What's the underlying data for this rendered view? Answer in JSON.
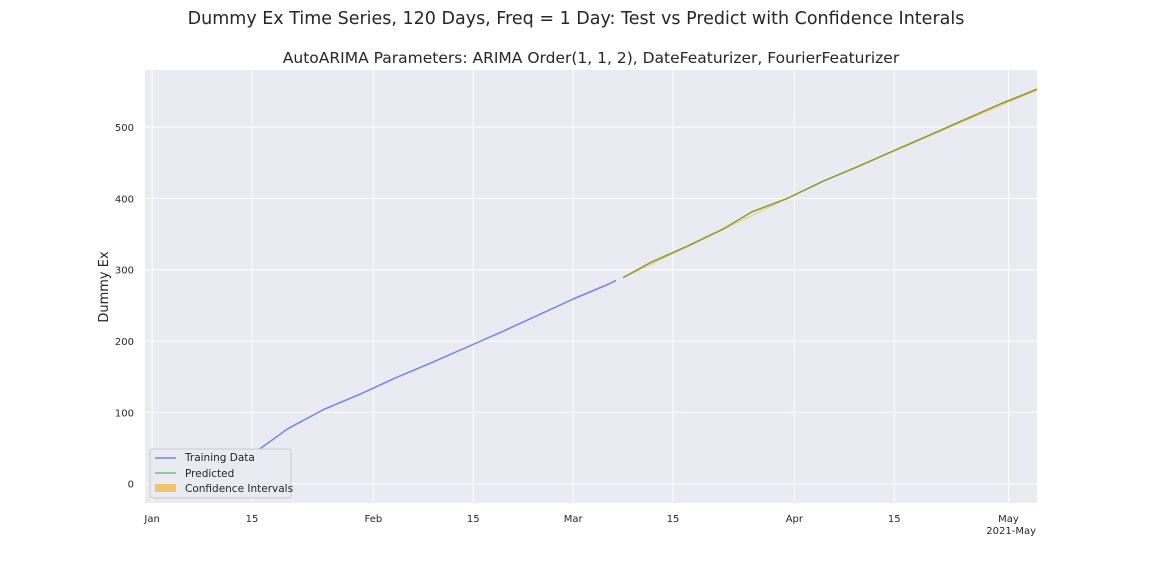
{
  "figure": {
    "suptitle": "Dummy Ex Time Series, 120 Days, Freq = 1 Day: Test vs Predict with Confidence Interals"
  },
  "chart_data": {
    "type": "line",
    "title": "AutoARIMA Parameters: ARIMA Order(1, 1, 2), DateFeaturizer, FourierFeaturizer",
    "xlabel": "",
    "ylabel": "Dummy Ex",
    "xlim": [
      "2020-12-31",
      "2021-05-05"
    ],
    "ylim": [
      -27,
      580
    ],
    "yticks": [
      0,
      100,
      200,
      300,
      400,
      500
    ],
    "xticks": [
      {
        "date": "2021-01-01",
        "label": "Jan"
      },
      {
        "date": "2021-01-15",
        "label": "15"
      },
      {
        "date": "2021-02-01",
        "label": "Feb"
      },
      {
        "date": "2021-02-15",
        "label": "15"
      },
      {
        "date": "2021-03-01",
        "label": "Mar"
      },
      {
        "date": "2021-03-15",
        "label": "15"
      },
      {
        "date": "2021-04-01",
        "label": "Apr"
      },
      {
        "date": "2021-04-15",
        "label": "15"
      },
      {
        "date": "2021-05-01",
        "label": "May"
      }
    ],
    "x_offset_label": "2021-May",
    "grid": true,
    "legend_position": "lower left",
    "series": [
      {
        "name": "Training Data",
        "color": "#7b7ff0",
        "x": [
          "2021-01-15",
          "2021-01-20",
          "2021-01-25",
          "2021-01-30",
          "2021-02-04",
          "2021-02-09",
          "2021-02-14",
          "2021-02-19",
          "2021-02-24",
          "2021-03-01",
          "2021-03-06",
          "2021-03-07"
        ],
        "y": [
          41,
          77,
          104,
          125,
          148,
          169,
          191,
          213,
          236,
          259,
          280,
          285
        ]
      },
      {
        "name": "Predicted",
        "color": "#8c9b2a",
        "x": [
          "2021-03-08",
          "2021-03-12",
          "2021-03-17",
          "2021-03-22",
          "2021-03-26",
          "2021-03-31",
          "2021-04-05",
          "2021-04-10",
          "2021-04-15",
          "2021-04-20",
          "2021-04-25",
          "2021-04-30",
          "2021-05-05"
        ],
        "y": [
          289,
          311,
          333,
          357,
          381,
          400,
          424,
          445,
          467,
          489,
          511,
          533,
          553
        ]
      }
    ],
    "confidence_intervals": {
      "name": "Confidence Intervals",
      "color": "#f2b94e",
      "x": [
        "2021-03-08",
        "2021-04-05",
        "2021-05-05"
      ],
      "lower": [
        288,
        423,
        551
      ],
      "upper": [
        290,
        425,
        555
      ]
    }
  }
}
